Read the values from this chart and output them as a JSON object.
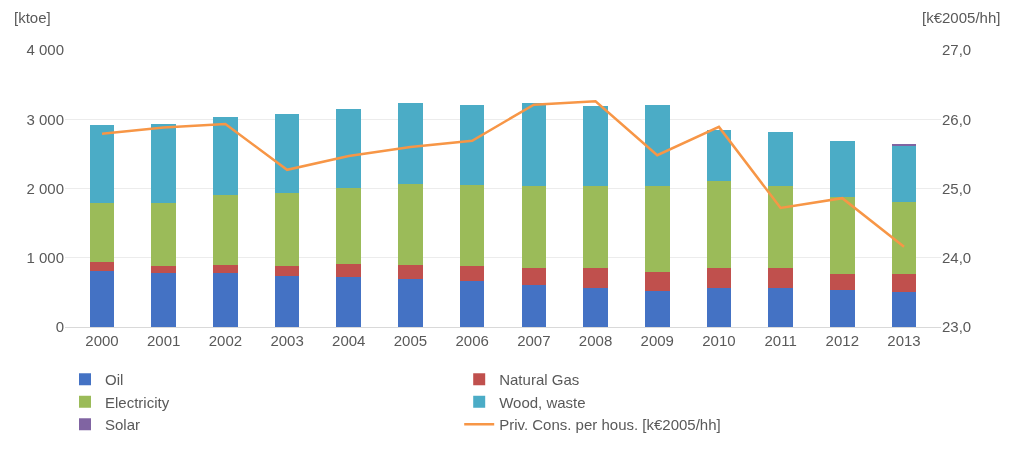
{
  "chart_data": {
    "type": "bar",
    "stacked": true,
    "ylabel": "[ktoe]",
    "y2label": "[k€2005/hh]",
    "categories": [
      "2000",
      "2001",
      "2002",
      "2003",
      "2004",
      "2005",
      "2006",
      "2007",
      "2008",
      "2009",
      "2010",
      "2011",
      "2012",
      "2013"
    ],
    "series": [
      {
        "name": "Oil",
        "color": "#4472c4",
        "values": [
          810,
          780,
          780,
          730,
          720,
          690,
          660,
          600,
          570,
          520,
          570,
          570,
          540,
          500
        ]
      },
      {
        "name": "Natural Gas",
        "color": "#c0504d",
        "values": [
          130,
          100,
          120,
          150,
          190,
          200,
          220,
          250,
          280,
          270,
          280,
          280,
          230,
          270
        ]
      },
      {
        "name": "Electricity",
        "color": "#9bbb59",
        "values": [
          850,
          910,
          1000,
          1060,
          1100,
          1170,
          1170,
          1190,
          1190,
          1250,
          1260,
          1190,
          1110,
          1030
        ]
      },
      {
        "name": "Wood, waste",
        "color": "#4bacc6",
        "values": [
          1120,
          1140,
          1130,
          1140,
          1140,
          1170,
          1160,
          1190,
          1150,
          1170,
          740,
          770,
          810,
          820
        ]
      },
      {
        "name": "Solar",
        "color": "#8064a2",
        "values": [
          0,
          0,
          0,
          0,
          0,
          0,
          0,
          0,
          0,
          0,
          0,
          0,
          0,
          20
        ]
      },
      {
        "name": "Priv. Cons. per hous. [k€2005/hh]",
        "type": "line",
        "axis": "y2",
        "color": "#f79646",
        "values": [
          25.79,
          25.88,
          25.93,
          25.27,
          25.47,
          25.6,
          25.69,
          26.21,
          26.26,
          25.48,
          25.89,
          24.72,
          24.86,
          24.16
        ]
      }
    ],
    "ylim": [
      0,
      4000
    ],
    "yticks": [
      {
        "value": 0,
        "label": "0"
      },
      {
        "value": 1000,
        "label": "1 000"
      },
      {
        "value": 2000,
        "label": "2 000"
      },
      {
        "value": 3000,
        "label": "3 000"
      },
      {
        "value": 4000,
        "label": "4 000"
      }
    ],
    "y2lim": [
      23,
      27
    ],
    "y2ticks": [
      {
        "value": 23,
        "label": "23,0"
      },
      {
        "value": 24,
        "label": "24,0"
      },
      {
        "value": 25,
        "label": "25,0"
      },
      {
        "value": 26,
        "label": "26,0"
      },
      {
        "value": 27,
        "label": "27,0"
      }
    ],
    "grid": "y",
    "legend": "bottom",
    "marker": "none"
  }
}
